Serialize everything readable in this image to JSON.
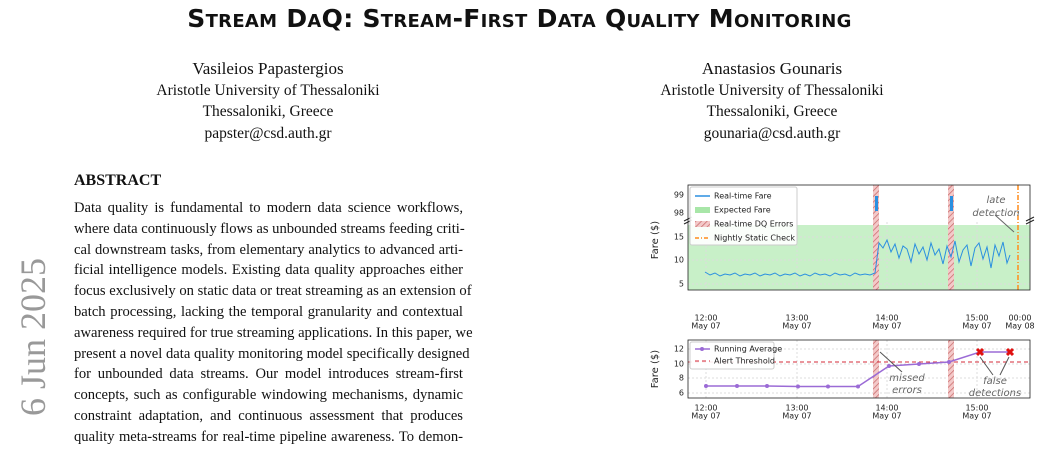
{
  "header": {
    "title": "Stream DaQ: Stream-First Data Quality Monitoring"
  },
  "authors": [
    {
      "name": "Vasileios Papastergios",
      "affiliation": "Aristotle University of Thessaloniki",
      "location": "Thessaloniki, Greece",
      "email": "papster@csd.auth.gr"
    },
    {
      "name": "Anastasios Gounaris",
      "affiliation": "Aristotle University of Thessaloniki",
      "location": "Thessaloniki, Greece",
      "email": "gounaria@csd.auth.gr"
    }
  ],
  "side_stamp": "6 Jun 2025",
  "abstract": {
    "heading": "ABSTRACT",
    "lines": [
      "Data quality is fundamental to modern data science workflows,",
      "where data continuously flows as unbounded streams feeding criti-",
      "cal downstream tasks, from elementary analytics to advanced arti-",
      "ficial intelligence models. Existing data quality approaches either",
      "focus exclusively on static data or treat streaming as an extension of",
      "batch processing, lacking the temporal granularity and contextual",
      "awareness required for true streaming applications. In this paper, we",
      "present a novel data quality monitoring model specifically designed",
      "for unbounded data streams. Our model introduces stream-first",
      "concepts, such as configurable windowing mechanisms, dynamic",
      "constraint adaptation, and continuous assessment that produces",
      "quality meta-streams for real-time pipeline awareness. To demon-"
    ]
  },
  "figure": {
    "top": {
      "ylabel": "Fare ($)",
      "yticks": [
        "99",
        "98",
        "15",
        "10",
        "5"
      ],
      "xticks": [
        [
          "12:00",
          "May 07"
        ],
        [
          "13:00",
          "May 07"
        ],
        [
          "14:00",
          "May 07"
        ],
        [
          "15:00",
          "May 07"
        ],
        [
          "00:00",
          "May 08"
        ]
      ],
      "legend": [
        "Real-time Fare",
        "Expected Fare",
        "Real-time DQ Errors",
        "Nightly Static Check"
      ],
      "annotation": [
        "late",
        "detection"
      ]
    },
    "bottom": {
      "ylabel": "Fare ($)",
      "yticks": [
        "12",
        "10",
        "8",
        "6"
      ],
      "xticks": [
        [
          "12:00",
          "May 07"
        ],
        [
          "13:00",
          "May 07"
        ],
        [
          "14:00",
          "May 07"
        ],
        [
          "15:00",
          "May 07"
        ]
      ],
      "legend": [
        "Running Average",
        "Alert Threshold"
      ],
      "annotations": [
        [
          "missed",
          "errors"
        ],
        [
          "false",
          "detections"
        ]
      ]
    }
  }
}
